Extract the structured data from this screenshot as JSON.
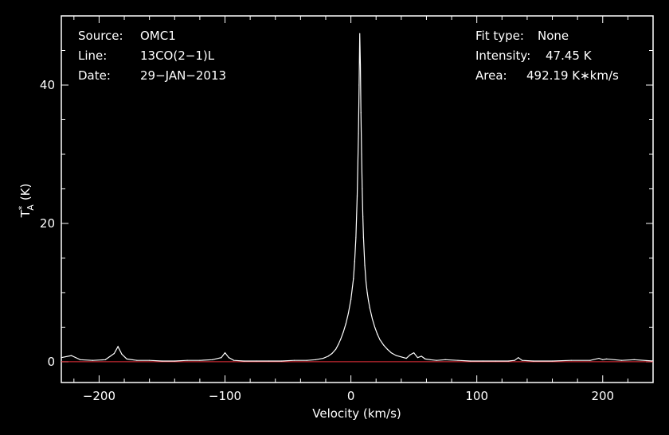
{
  "chart_data": {
    "type": "line",
    "title": "",
    "xlabel": "Velocity (km/s)",
    "ylabel": "T",
    "ylabel_sup": "*",
    "ylabel_sub": "A",
    "ylabel_unit": "(K)",
    "xlim": [
      -230,
      240
    ],
    "ylim": [
      -3,
      50
    ],
    "x_ticks": [
      -200,
      -100,
      0,
      100,
      200
    ],
    "x_tick_labels": [
      "−200",
      "−100",
      "0",
      "100",
      "200"
    ],
    "y_ticks": [
      0,
      20,
      40
    ],
    "y_tick_labels": [
      "0",
      "20",
      "40"
    ],
    "grid": false,
    "baseline": {
      "y": 0,
      "color": "#e8303a"
    },
    "series": [
      {
        "color": "#ffffff",
        "x": [
          -230,
          -222,
          -215,
          -205,
          -195,
          -188,
          -185,
          -182,
          -178,
          -170,
          -160,
          -150,
          -140,
          -130,
          -120,
          -110,
          -103,
          -100,
          -97,
          -93,
          -85,
          -75,
          -65,
          -55,
          -45,
          -35,
          -28,
          -22,
          -18,
          -15,
          -12,
          -10,
          -8,
          -6,
          -4,
          -2,
          0,
          2,
          3,
          4,
          5,
          6,
          6.5,
          7,
          7.5,
          8,
          8.5,
          9,
          9.5,
          10,
          11,
          12,
          13,
          14,
          15,
          17,
          19,
          21,
          23,
          26,
          29,
          32,
          36,
          40,
          44,
          47,
          50,
          53,
          56,
          59,
          63,
          68,
          75,
          85,
          95,
          105,
          115,
          125,
          130,
          133,
          136,
          145,
          160,
          175,
          190,
          197,
          200,
          203,
          215,
          225,
          240
        ],
        "values": [
          0.6,
          0.9,
          0.3,
          0.2,
          0.3,
          1.2,
          2.2,
          1.1,
          0.4,
          0.2,
          0.2,
          0.1,
          0.1,
          0.2,
          0.2,
          0.3,
          0.6,
          1.3,
          0.6,
          0.2,
          0.1,
          0.1,
          0.1,
          0.1,
          0.2,
          0.2,
          0.3,
          0.5,
          0.8,
          1.2,
          1.8,
          2.5,
          3.3,
          4.3,
          5.5,
          7.0,
          9.0,
          12.0,
          14.5,
          18.0,
          24.0,
          33.0,
          40.0,
          47.45,
          43.0,
          36.0,
          30.0,
          25.0,
          21.0,
          18.0,
          14.0,
          11.5,
          10.0,
          8.8,
          7.8,
          6.2,
          5.0,
          4.0,
          3.2,
          2.4,
          1.8,
          1.3,
          0.9,
          0.7,
          0.5,
          1.0,
          1.3,
          0.6,
          0.8,
          0.4,
          0.3,
          0.2,
          0.3,
          0.2,
          0.1,
          0.1,
          0.1,
          0.1,
          0.2,
          0.6,
          0.2,
          0.1,
          0.1,
          0.2,
          0.2,
          0.5,
          0.3,
          0.4,
          0.2,
          0.3,
          0.1
        ]
      }
    ]
  },
  "header_left": [
    {
      "key": "Source:",
      "value": "OMC1"
    },
    {
      "key": "Line:",
      "value": "13CO(2−1)L"
    },
    {
      "key": "Date:",
      "value": "29−JAN−2013"
    }
  ],
  "header_right": [
    {
      "key": "Fit type:",
      "value": "None"
    },
    {
      "key": "Intensity:",
      "value": "47.45 K"
    },
    {
      "key": "Area:",
      "value": "492.19 K∗km/s"
    }
  ]
}
